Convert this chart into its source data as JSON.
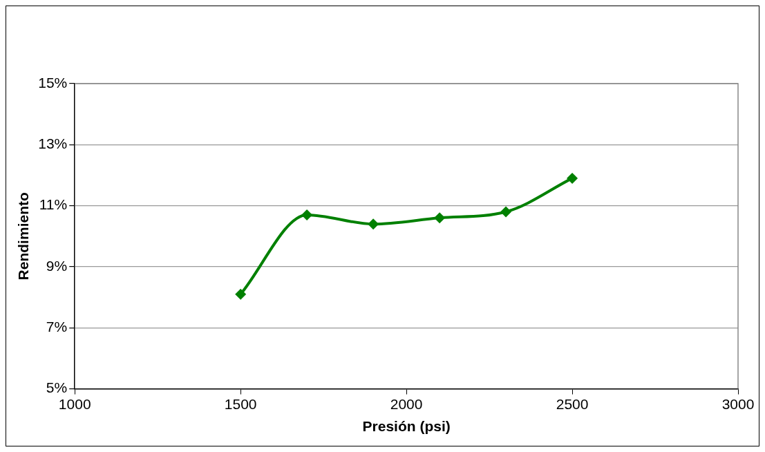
{
  "chart_data": {
    "type": "line",
    "xlabel": "Presión (psi)",
    "ylabel": "Rendimiento",
    "x": [
      1500,
      1700,
      1900,
      2100,
      2300,
      2500
    ],
    "series": [
      {
        "color": "#008000",
        "values": [
          8.1,
          10.7,
          10.4,
          10.6,
          10.8,
          11.9
        ]
      }
    ],
    "xlim": [
      1000,
      3000
    ],
    "xticks": [
      1000,
      1500,
      2000,
      2500,
      3000
    ],
    "ylim": [
      5,
      15
    ],
    "yticks": [
      {
        "value": 5,
        "label": "5%"
      },
      {
        "value": 7,
        "label": "7%"
      },
      {
        "value": 9,
        "label": "9%"
      },
      {
        "value": 11,
        "label": "11%"
      },
      {
        "value": 13,
        "label": "13%"
      },
      {
        "value": 15,
        "label": "15%"
      }
    ],
    "grid": "y",
    "legend": false,
    "marker": "diamond",
    "line_style": "solid"
  }
}
